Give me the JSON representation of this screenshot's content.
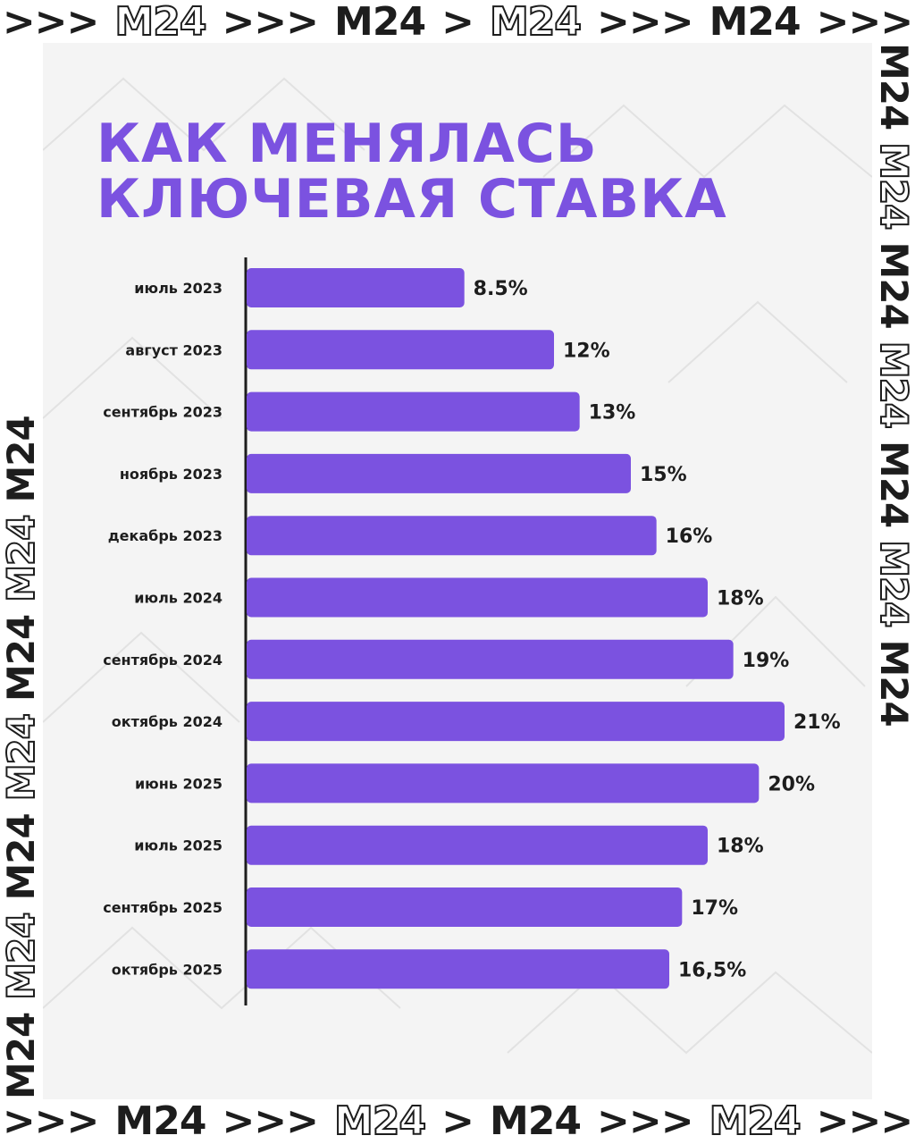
{
  "header": {
    "items": [
      ">>>",
      "M24",
      ">>>",
      "M24",
      ">",
      "M24",
      ">>>",
      "M24",
      ">>>"
    ],
    "outlined": [
      false,
      true,
      false,
      false,
      false,
      true,
      false,
      false,
      false
    ]
  },
  "footer": {
    "items": [
      ">>>",
      "M24",
      ">>>",
      "M24",
      ">",
      "M24",
      ">>>",
      "M24",
      ">>>"
    ],
    "outlined": [
      false,
      false,
      false,
      true,
      false,
      false,
      false,
      true,
      false
    ]
  },
  "side": {
    "text": "M24",
    "repeat": 7
  },
  "chart_data": {
    "type": "bar",
    "orientation": "horizontal",
    "title_lines": [
      "КАК МЕНЯЛАСЬ",
      "КЛЮЧЕВАЯ СТАВКА"
    ],
    "categories": [
      "июль 2023",
      "август 2023",
      "сентябрь 2023",
      "ноябрь 2023",
      "декабрь 2023",
      "июль 2024",
      "сентябрь 2024",
      "октябрь 2024",
      "июнь 2025",
      "июль 2025",
      "сентябрь 2025",
      "октябрь 2025"
    ],
    "values": [
      8.5,
      12,
      13,
      15,
      16,
      18,
      19,
      21,
      20,
      18,
      17,
      16.5
    ],
    "value_labels": [
      "8.5%",
      "12%",
      "13%",
      "15%",
      "16%",
      "18%",
      "19%",
      "21%",
      "20%",
      "18%",
      "17%",
      "16,5%"
    ],
    "xlim": [
      0,
      21
    ],
    "bar_color": "#7b52e0",
    "axis_color": "#1d1d1d",
    "grid": false,
    "legend": "none"
  }
}
